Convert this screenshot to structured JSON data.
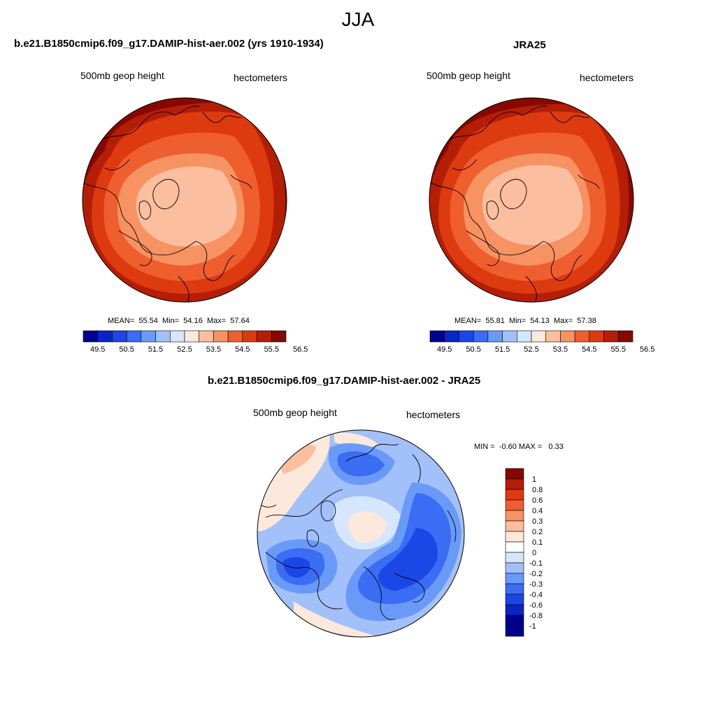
{
  "title": "JJA",
  "palette": [
    "#00008f",
    "#0a24c8",
    "#1a47e6",
    "#3a6cf4",
    "#6a9af8",
    "#a2c0fa",
    "#d6e6fc",
    "#fde8dc",
    "#fbbe9e",
    "#f79262",
    "#ee5e2e",
    "#dd3a10",
    "#b51e06",
    "#870800"
  ],
  "panels": [
    {
      "title": "b.e21.B1850cmip6.f09_g17.DAMIP-hist-aer.002 (yrs 1910-1934)",
      "left_label": "500mb geop height",
      "right_label": "hectometers",
      "stats": {
        "mean_label": "MEAN=",
        "mean": "55.54",
        "min_label": "Min=",
        "min": "54.16",
        "max_label": "Max=",
        "max": "57.64"
      },
      "colorbar_ticks": [
        "49.5",
        "50.5",
        "51.5",
        "52.5",
        "53.5",
        "54.5",
        "55.5",
        "56.5"
      ]
    },
    {
      "title": "JRA25",
      "left_label": "500mb geop height",
      "right_label": "hectometers",
      "stats": {
        "mean_label": "MEAN=",
        "mean": "55.81",
        "min_label": "Min=",
        "min": "54.13",
        "max_label": "Max=",
        "max": "57.38"
      },
      "colorbar_ticks": [
        "49.5",
        "50.5",
        "51.5",
        "52.5",
        "53.5",
        "54.5",
        "55.5",
        "56.5"
      ]
    },
    {
      "title": "b.e21.B1850cmip6.f09_g17.DAMIP-hist-aer.002 - JRA25",
      "left_label": "500mb geop height",
      "right_label": "hectometers",
      "stats": {
        "min_label": "MIN =",
        "min": "-0.60",
        "max_label": "MAX =",
        "max": "0.33"
      },
      "colorbar_ticks": [
        "1",
        "0.8",
        "0.6",
        "0.4",
        "0.3",
        "0.2",
        "0.1",
        "0",
        "-0.1",
        "-0.2",
        "-0.3",
        "-0.4",
        "-0.6",
        "-0.8",
        "-1"
      ]
    }
  ]
}
